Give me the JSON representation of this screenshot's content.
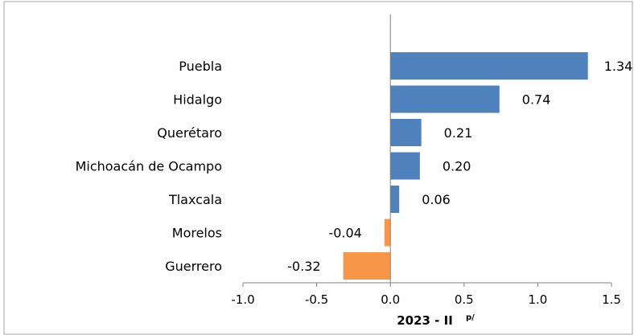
{
  "chart_data": {
    "type": "bar",
    "orientation": "horizontal",
    "title": "",
    "xlabel": "2023 - II",
    "xlabel_superscript": "p/",
    "ylabel": "",
    "categories": [
      "Puebla",
      "Hidalgo",
      "Querétaro",
      "Michoacán de Ocampo",
      "Tlaxcala",
      "Morelos",
      "Guerrero"
    ],
    "values": [
      1.34,
      0.74,
      0.21,
      0.2,
      0.06,
      -0.04,
      -0.32
    ],
    "value_labels": [
      "1.34",
      "0.74",
      "0.21",
      "0.20",
      "0.06",
      "-0.04",
      "-0.32"
    ],
    "xlim": [
      -1.0,
      1.5
    ],
    "xticks": [
      -1.0,
      -0.5,
      0.0,
      0.5,
      1.0,
      1.5
    ],
    "xtick_labels": [
      "-1.0",
      "-0.5",
      "0.0",
      "0.5",
      "1.0",
      "1.5"
    ],
    "grid": false,
    "legend": "none",
    "colors": {
      "positive": "#4f81bd",
      "negative": "#f79646",
      "axis": "#808080"
    }
  }
}
